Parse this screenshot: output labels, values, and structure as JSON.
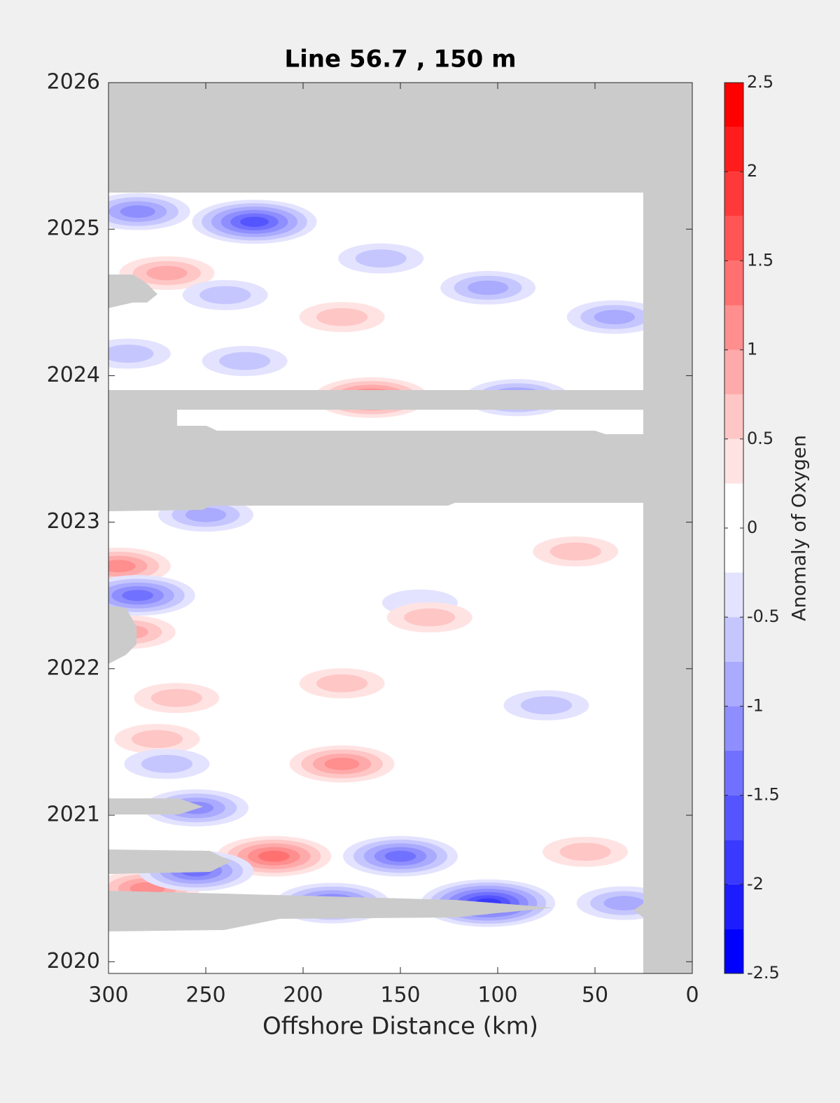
{
  "chart_data": {
    "type": "contour",
    "title": "Line 56.7 , 150 m",
    "x_label": "Offshore Distance (km)",
    "xlim": [
      300,
      0
    ],
    "xticks": [
      300,
      250,
      200,
      150,
      100,
      50,
      0
    ],
    "ylim": [
      2019.92,
      2026
    ],
    "yticks": [
      2020,
      2021,
      2022,
      2023,
      2024,
      2025,
      2026
    ],
    "colorbar": {
      "label": "Anomaly of Oxygen",
      "clim": [
        -2.5,
        2.5
      ],
      "ticks": [
        -2.5,
        -2,
        -1.5,
        -1,
        -0.5,
        0,
        0.5,
        1,
        1.5,
        2,
        2.5
      ],
      "levels": 20
    },
    "features": [
      {
        "x": 225,
        "y": 2025.05,
        "value": -1.75
      },
      {
        "x": 285,
        "y": 2025.12,
        "value": -1.25
      },
      {
        "x": 270,
        "y": 2024.7,
        "value": 1.0
      },
      {
        "x": 160,
        "y": 2024.8,
        "value": -0.75
      },
      {
        "x": 105,
        "y": 2024.6,
        "value": -1.0
      },
      {
        "x": 240,
        "y": 2024.55,
        "value": -0.75
      },
      {
        "x": 180,
        "y": 2024.4,
        "value": 0.75
      },
      {
        "x": 40,
        "y": 2024.4,
        "value": -1.0
      },
      {
        "x": 290,
        "y": 2024.15,
        "value": -0.75
      },
      {
        "x": 230,
        "y": 2024.1,
        "value": -0.75
      },
      {
        "x": 165,
        "y": 2023.85,
        "value": 1.5
      },
      {
        "x": 90,
        "y": 2023.85,
        "value": -1.25
      },
      {
        "x": 250,
        "y": 2023.05,
        "value": -1.0
      },
      {
        "x": 295,
        "y": 2022.7,
        "value": 1.25
      },
      {
        "x": 60,
        "y": 2022.8,
        "value": 0.75
      },
      {
        "x": 285,
        "y": 2022.5,
        "value": -1.5
      },
      {
        "x": 140,
        "y": 2022.45,
        "value": -0.5
      },
      {
        "x": 290,
        "y": 2022.25,
        "value": 1.0
      },
      {
        "x": 135,
        "y": 2022.35,
        "value": 0.75
      },
      {
        "x": 75,
        "y": 2021.75,
        "value": -0.75
      },
      {
        "x": 180,
        "y": 2021.9,
        "value": 0.75
      },
      {
        "x": 265,
        "y": 2021.8,
        "value": 0.75
      },
      {
        "x": 275,
        "y": 2021.52,
        "value": 0.75
      },
      {
        "x": 180,
        "y": 2021.35,
        "value": 1.25
      },
      {
        "x": 270,
        "y": 2021.35,
        "value": -0.75
      },
      {
        "x": 255,
        "y": 2021.05,
        "value": -1.25
      },
      {
        "x": 215,
        "y": 2020.72,
        "value": 1.5
      },
      {
        "x": 150,
        "y": 2020.72,
        "value": -1.5
      },
      {
        "x": 185,
        "y": 2020.4,
        "value": -1.5
      },
      {
        "x": 105,
        "y": 2020.4,
        "value": -2.0
      },
      {
        "x": 280,
        "y": 2020.5,
        "value": 1.25
      },
      {
        "x": 255,
        "y": 2020.62,
        "value": -1.5
      },
      {
        "x": 55,
        "y": 2020.75,
        "value": 0.75
      },
      {
        "x": 35,
        "y": 2020.4,
        "value": -1.0
      }
    ]
  }
}
